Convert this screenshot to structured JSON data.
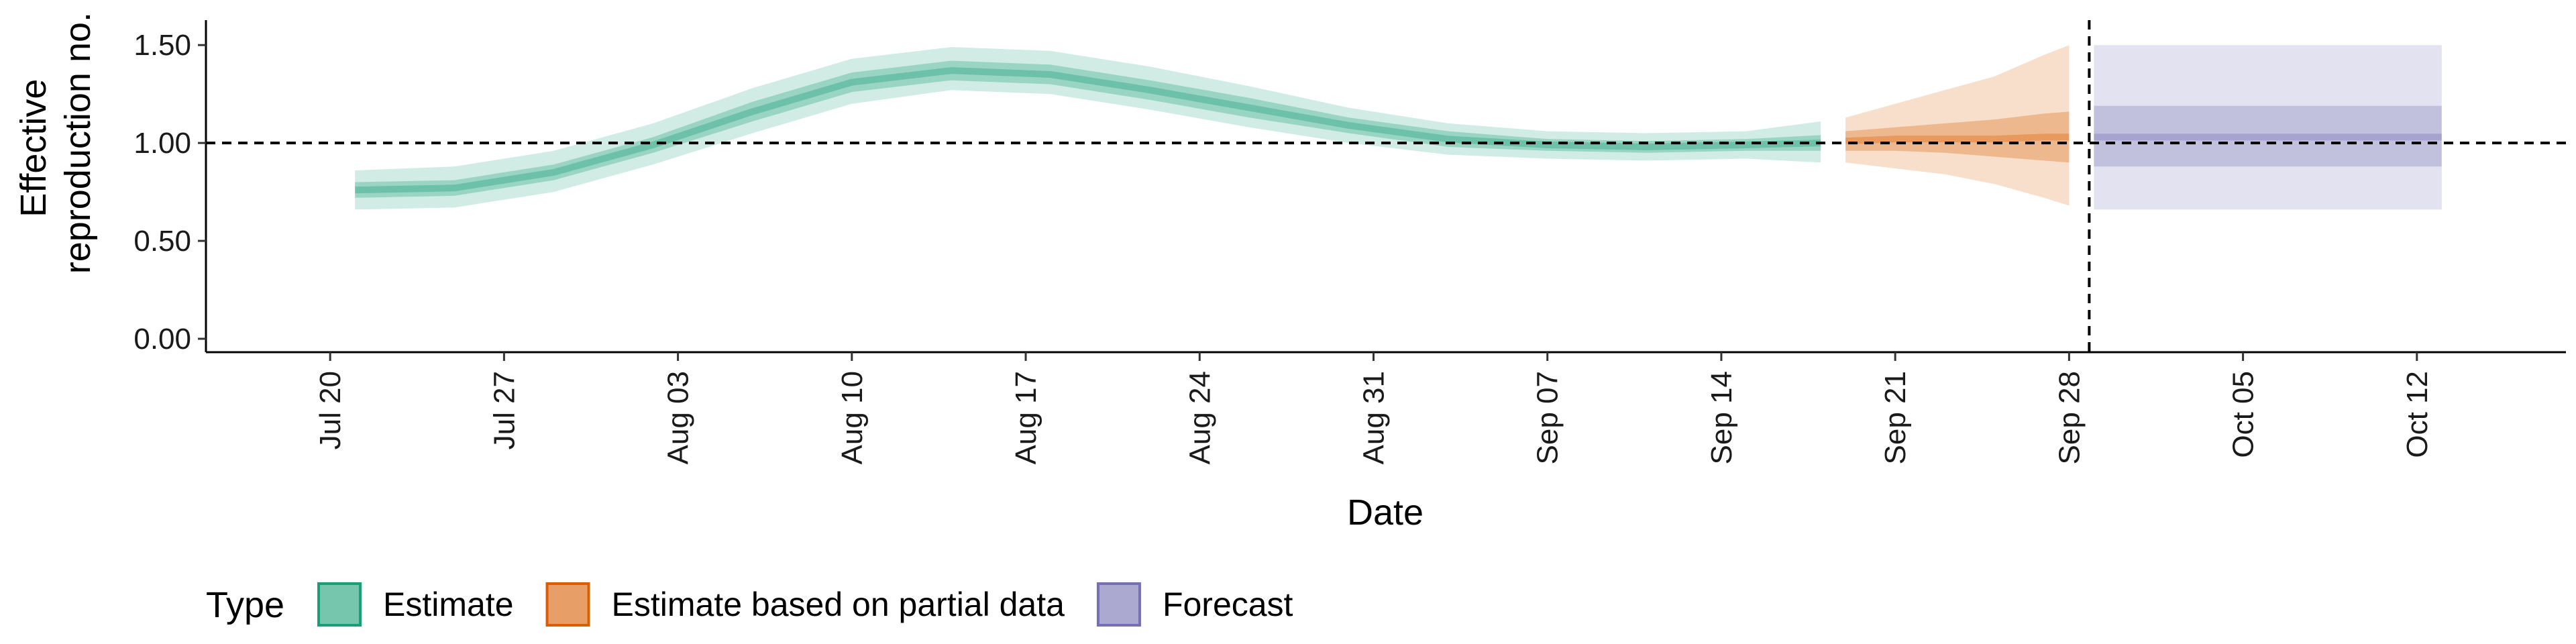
{
  "chart_data": {
    "type": "area",
    "xlabel": "Date",
    "ylabel": "Effective reproduction no.",
    "ylabel_lines": [
      "Effective",
      "reproduction no."
    ],
    "xlim": [
      "2020-07-15",
      "2020-10-18"
    ],
    "ylim": [
      0,
      1.6
    ],
    "yticks": [
      0,
      0.5,
      1.0,
      1.5
    ],
    "ytick_labels": [
      "0.00",
      "0.50",
      "1.00",
      "1.50"
    ],
    "xticks": [
      "2020-07-20",
      "2020-07-27",
      "2020-08-03",
      "2020-08-10",
      "2020-08-17",
      "2020-08-24",
      "2020-08-31",
      "2020-09-07",
      "2020-09-14",
      "2020-09-21",
      "2020-09-28",
      "2020-10-05",
      "2020-10-12"
    ],
    "xtick_labels": [
      "Jul 20",
      "Jul 27",
      "Aug 03",
      "Aug 10",
      "Aug 17",
      "Aug 24",
      "Aug 31",
      "Sep 07",
      "Sep 14",
      "Sep 21",
      "Sep 28",
      "Oct 05",
      "Oct 12"
    ],
    "reference_lines": {
      "horizontal_y": 1.0,
      "vertical_x": "2020-09-28"
    },
    "grid": false,
    "legend_position": "bottom-left",
    "legend_title": "Type",
    "series": [
      {
        "name": "Estimate",
        "color": "#1b9e77",
        "x": [
          "2020-07-21",
          "2020-07-25",
          "2020-07-29",
          "2020-08-02",
          "2020-08-06",
          "2020-08-10",
          "2020-08-14",
          "2020-08-18",
          "2020-08-22",
          "2020-08-26",
          "2020-08-30",
          "2020-09-03",
          "2020-09-07",
          "2020-09-11",
          "2020-09-15",
          "2020-09-18"
        ],
        "median": [
          0.76,
          0.77,
          0.85,
          0.99,
          1.16,
          1.31,
          1.37,
          1.35,
          1.27,
          1.18,
          1.09,
          1.02,
          0.99,
          0.98,
          0.99,
          1.0
        ],
        "lower_20": [
          0.72,
          0.73,
          0.81,
          0.95,
          1.11,
          1.26,
          1.32,
          1.3,
          1.22,
          1.13,
          1.05,
          0.98,
          0.96,
          0.95,
          0.96,
          0.96
        ],
        "upper_20": [
          0.8,
          0.81,
          0.89,
          1.03,
          1.21,
          1.36,
          1.42,
          1.4,
          1.32,
          1.23,
          1.13,
          1.06,
          1.02,
          1.01,
          1.02,
          1.04
        ],
        "lower_90": [
          0.66,
          0.67,
          0.75,
          0.89,
          1.05,
          1.2,
          1.27,
          1.25,
          1.17,
          1.08,
          1.0,
          0.94,
          0.92,
          0.91,
          0.92,
          0.9
        ],
        "upper_90": [
          0.86,
          0.88,
          0.96,
          1.1,
          1.28,
          1.43,
          1.49,
          1.47,
          1.39,
          1.29,
          1.18,
          1.1,
          1.06,
          1.05,
          1.06,
          1.11
        ]
      },
      {
        "name": "Estimate based on partial data",
        "color": "#d95f02",
        "x": [
          "2020-09-19",
          "2020-09-21",
          "2020-09-23",
          "2020-09-25",
          "2020-09-27",
          "2020-09-28"
        ],
        "median": [
          1.01,
          1.02,
          1.02,
          1.02,
          1.03,
          1.03
        ],
        "lower_20": [
          0.96,
          0.96,
          0.95,
          0.93,
          0.91,
          0.9
        ],
        "upper_20": [
          1.06,
          1.08,
          1.1,
          1.12,
          1.15,
          1.16
        ],
        "lower_90": [
          0.9,
          0.87,
          0.84,
          0.79,
          0.72,
          0.68
        ],
        "upper_90": [
          1.13,
          1.2,
          1.27,
          1.34,
          1.45,
          1.5
        ]
      },
      {
        "name": "Forecast",
        "color": "#7570b3",
        "x": [
          "2020-09-29",
          "2020-10-13"
        ],
        "median": [
          1.03,
          1.03
        ],
        "lower_20": [
          0.88,
          0.88
        ],
        "upper_20": [
          1.19,
          1.19
        ],
        "lower_90": [
          0.66,
          0.66
        ],
        "upper_90": [
          1.5,
          1.5
        ]
      }
    ]
  }
}
